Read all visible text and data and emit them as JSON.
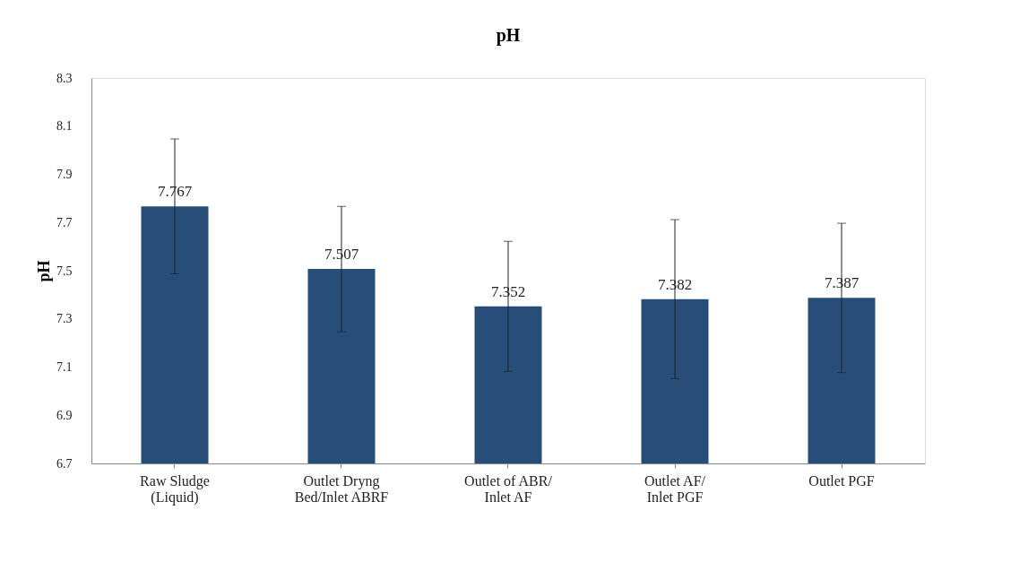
{
  "chart_data": {
    "type": "bar",
    "title": "pH",
    "ylabel": "pH",
    "categories": [
      "Raw Sludge\n(Liquid)",
      "Outlet  Dryng\nBed/Inlet ABRF",
      "Outlet of ABR/\nInlet AF",
      "Outlet AF/\nInlet PGF",
      "Outlet PGF"
    ],
    "values": [
      7.767,
      7.507,
      7.352,
      7.382,
      7.387
    ],
    "errors": [
      0.28,
      0.26,
      0.27,
      0.33,
      0.31
    ],
    "color": "#264e78",
    "ylim": [
      6.7,
      8.3
    ],
    "yticks": [
      {
        "value": 6.7,
        "label": "6.7"
      },
      {
        "value": 6.9,
        "label": "6.9"
      },
      {
        "value": 7.1,
        "label": "7.1"
      },
      {
        "value": 7.3,
        "label": "7.3"
      },
      {
        "value": 7.5,
        "label": "7.5"
      },
      {
        "value": 7.7,
        "label": "7.7"
      },
      {
        "value": 7.9,
        "label": "7.9"
      },
      {
        "value": 8.1,
        "label": "8.1"
      },
      {
        "value": 8.3,
        "label": "8.3"
      }
    ],
    "data_labels": true,
    "grid": false
  }
}
